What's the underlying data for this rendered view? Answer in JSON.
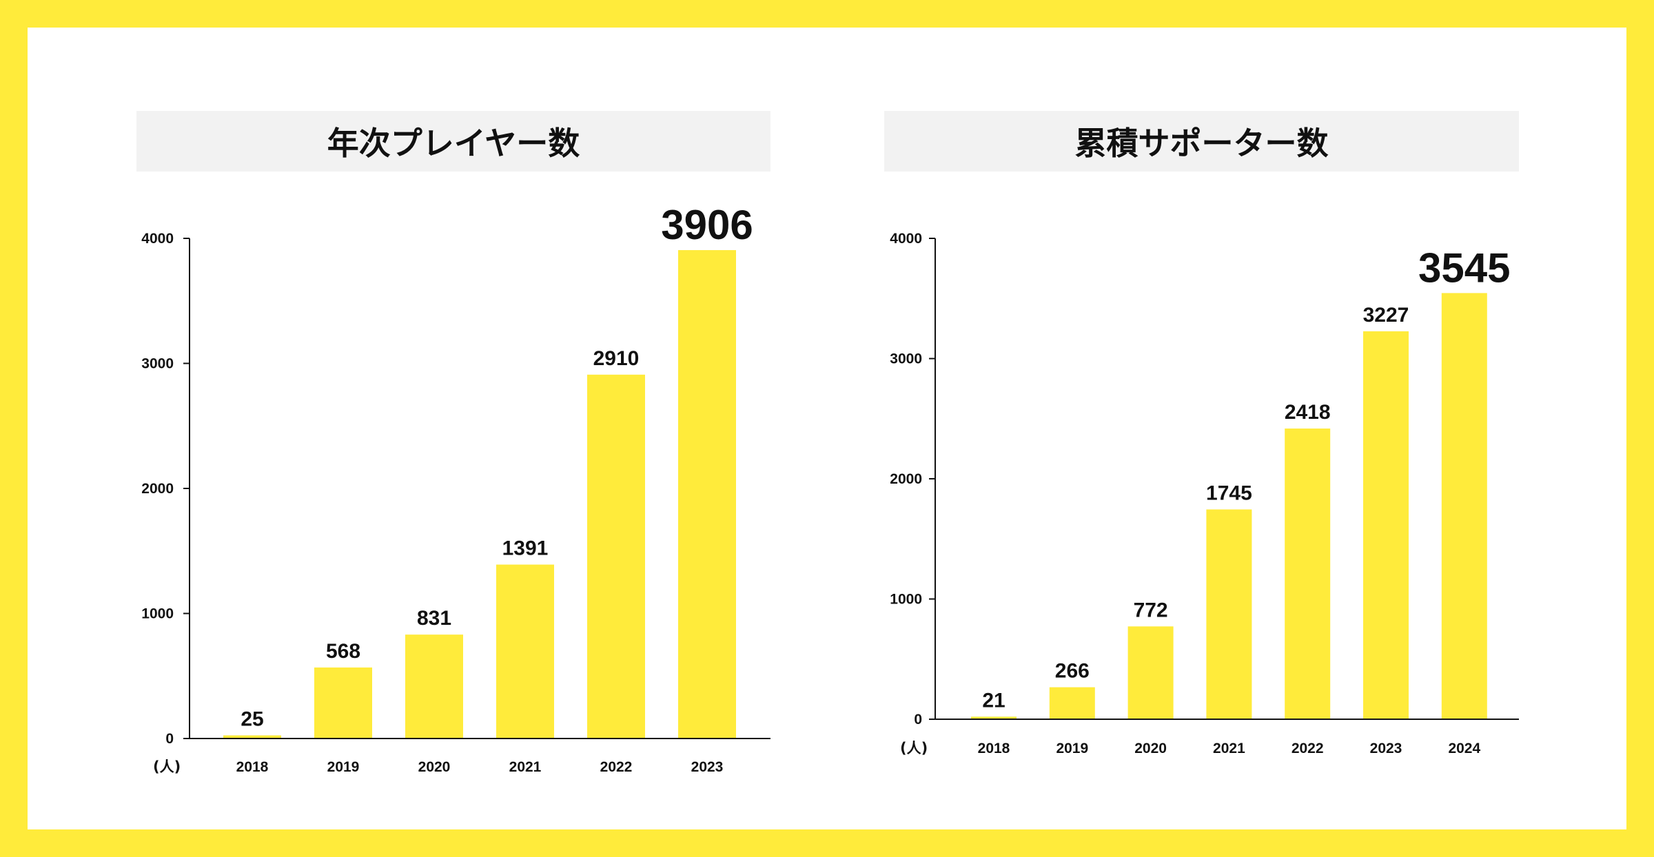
{
  "colors": {
    "frame": "#FFEB3B",
    "bar": "#FFEB3B",
    "highlight": "#F57C00",
    "text": "#111111",
    "axis": "#111111"
  },
  "chart_data": [
    {
      "type": "bar",
      "title": "年次プレイヤー数",
      "unit": "(人)",
      "categories": [
        "2018",
        "2019",
        "2020",
        "2021",
        "2022",
        "2023"
      ],
      "values": [
        25,
        568,
        831,
        1391,
        2910,
        3906
      ],
      "labels": [
        "25",
        "568",
        "831",
        "1391",
        "2910",
        "3906"
      ],
      "highlight_index": 5,
      "ylim": [
        0,
        4000
      ],
      "yticks": [
        0,
        1000,
        2000,
        3000,
        4000
      ],
      "grid": false
    },
    {
      "type": "bar",
      "title": "累積サポーター数",
      "unit": "(人)",
      "categories": [
        "2018",
        "2019",
        "2020",
        "2021",
        "2022",
        "2023",
        "2024"
      ],
      "values": [
        21,
        266,
        772,
        1745,
        2418,
        3227,
        3545
      ],
      "labels": [
        "21",
        "266",
        "772",
        "1745",
        "2418",
        "3227",
        "3545"
      ],
      "highlight_index": 6,
      "ylim": [
        0,
        4000
      ],
      "yticks": [
        0,
        1000,
        2000,
        3000,
        4000
      ],
      "grid": false
    }
  ]
}
